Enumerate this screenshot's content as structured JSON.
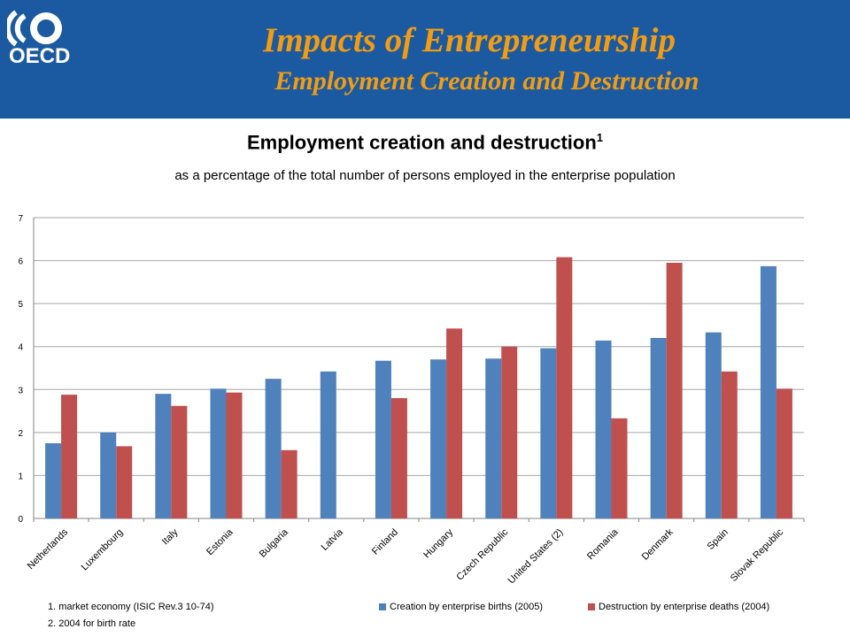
{
  "header": {
    "logo_text": "OECD",
    "title": "Impacts of Entrepreneurship",
    "subtitle": "Employment Creation and Destruction"
  },
  "colors": {
    "header_bg": "#1b5aa0",
    "title": "#f39c12",
    "series_creation": "#4f81bd",
    "series_destruction": "#c0504d"
  },
  "chart_data": {
    "type": "bar",
    "title": "Employment creation and destruction",
    "title_superscript": "1",
    "subtitle": "as a percentage of the total number of persons employed in the enterprise population",
    "categories": [
      "Netherlands",
      "Luxembourg",
      "Italy",
      "Estonia",
      "Bulgaria",
      "Latvia",
      "Finland",
      "Hungary",
      "Czech Republic",
      "United States (2)",
      "Romania",
      "Denmark",
      "Spain",
      "Slovak Republic"
    ],
    "series": [
      {
        "name": "Creation by enterprise births (2005)",
        "values": [
          1.75,
          2.0,
          2.9,
          3.02,
          3.25,
          3.42,
          3.67,
          3.7,
          3.72,
          3.96,
          4.14,
          4.2,
          4.33,
          5.87
        ]
      },
      {
        "name": "Destruction by enterprise deaths (2004)",
        "values": [
          2.88,
          1.68,
          2.62,
          2.93,
          1.59,
          null,
          2.8,
          4.42,
          4.0,
          6.08,
          2.33,
          5.95,
          3.42,
          3.02
        ]
      }
    ],
    "ylim": [
      0,
      7
    ],
    "yticks": [
      "0",
      "1",
      "2",
      "3",
      "4",
      "5",
      "6",
      "7"
    ],
    "grid": true,
    "legend_position": "bottom"
  },
  "footnotes": [
    "1. market economy  (ISIC Rev.3 10-74)",
    "2. 2004 for birth rate"
  ]
}
